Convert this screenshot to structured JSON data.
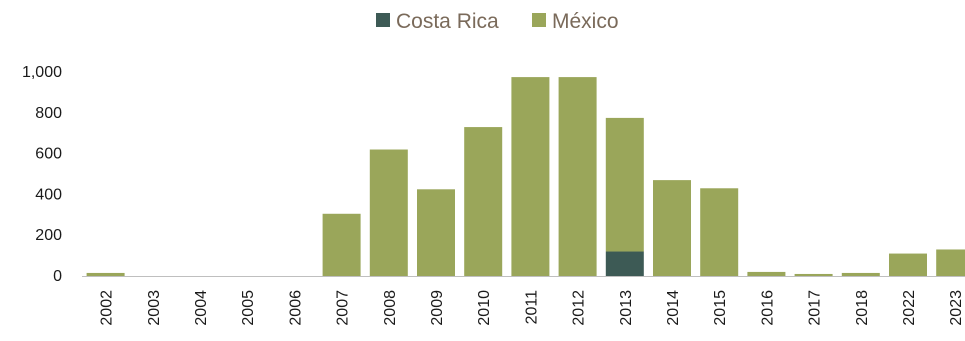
{
  "chart_data": {
    "type": "bar",
    "stacked": true,
    "categories": [
      "2002",
      "2003",
      "2004",
      "2005",
      "2006",
      "2007",
      "2008",
      "2009",
      "2010",
      "2011",
      "2012",
      "2013",
      "2014",
      "2015",
      "2016",
      "2017",
      "2018",
      "2022",
      "2023"
    ],
    "series": [
      {
        "name": "Costa Rica",
        "color": "#3d5a55",
        "values": [
          0,
          0,
          0,
          0,
          0,
          0,
          0,
          0,
          0,
          0,
          0,
          120,
          0,
          0,
          0,
          0,
          0,
          0,
          0
        ]
      },
      {
        "name": "México",
        "color": "#9aa65a",
        "values": [
          15,
          0,
          0,
          0,
          0,
          305,
          620,
          425,
          730,
          975,
          975,
          655,
          470,
          430,
          20,
          10,
          15,
          110,
          130
        ]
      }
    ],
    "ylim": [
      0,
      1000
    ],
    "yticks": [
      0,
      200,
      400,
      600,
      800,
      1000
    ],
    "ytick_labels": [
      "0",
      "200",
      "400",
      "600",
      "800",
      "1,000"
    ],
    "title": "",
    "xlabel": "",
    "ylabel": "",
    "legend_position": "top-center",
    "grid": false
  }
}
